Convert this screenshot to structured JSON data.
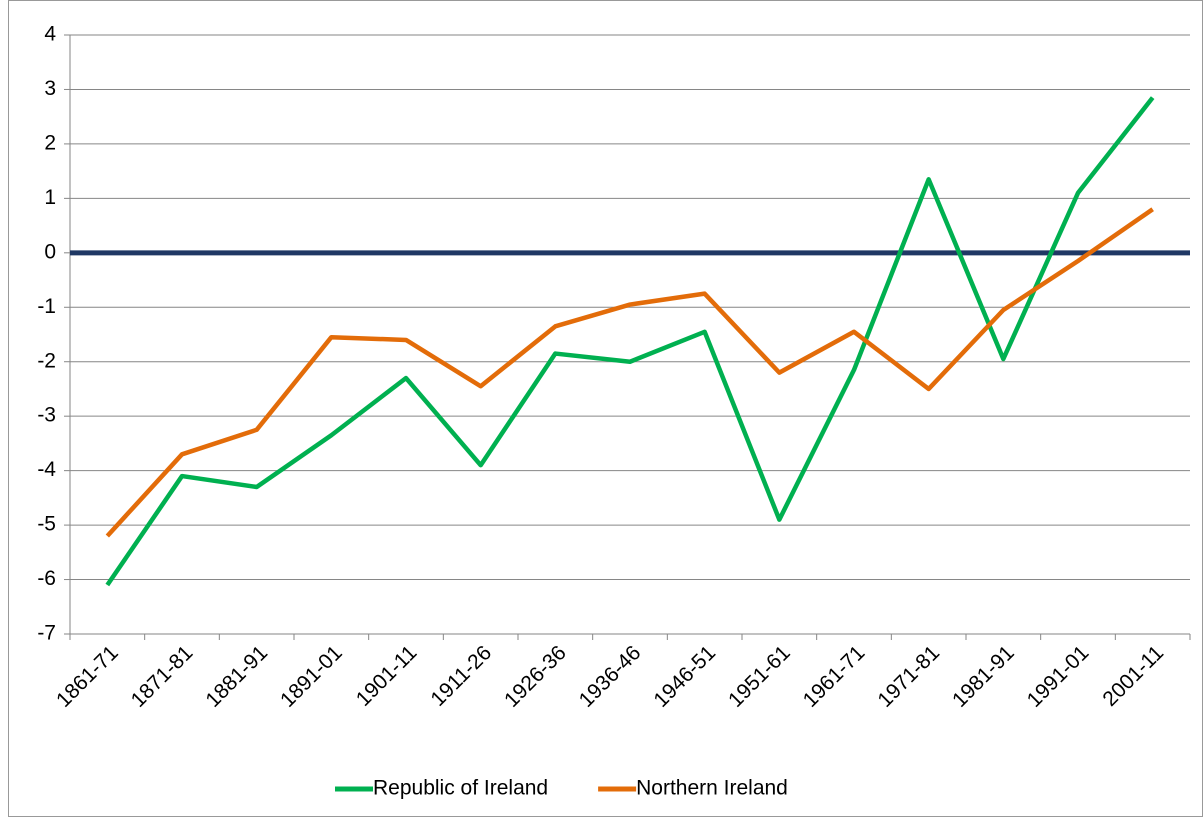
{
  "chart_data": {
    "type": "line",
    "categories": [
      "1861-71",
      "1871-81",
      "1881-91",
      "1891-01",
      "1901-11",
      "1911-26",
      "1926-36",
      "1936-46",
      "1946-51",
      "1951-61",
      "1961-71",
      "1971-81",
      "1981-91",
      "1991-01",
      "2001-11"
    ],
    "series": [
      {
        "name": "Republic of Ireland",
        "color": "#00b050",
        "values": [
          -6.1,
          -4.1,
          -4.3,
          -3.35,
          -2.3,
          -3.9,
          -1.85,
          -2.0,
          -1.45,
          -4.9,
          -2.15,
          1.35,
          -1.95,
          1.1,
          2.85
        ]
      },
      {
        "name": "Northern Ireland",
        "color": "#e36c09",
        "values": [
          -5.2,
          -3.7,
          -3.25,
          -1.55,
          -1.6,
          -2.45,
          -1.35,
          -0.95,
          -0.75,
          -2.2,
          -1.45,
          -2.5,
          -1.05,
          -0.15,
          0.8
        ]
      }
    ],
    "reference_line": {
      "value": 0,
      "color": "#1f3864"
    },
    "ylim": [
      -7,
      4
    ],
    "yticks": [
      -7,
      -6,
      -5,
      -4,
      -3,
      -2,
      -1,
      0,
      1,
      2,
      3,
      4
    ],
    "grid": true,
    "legend": "bottom"
  }
}
